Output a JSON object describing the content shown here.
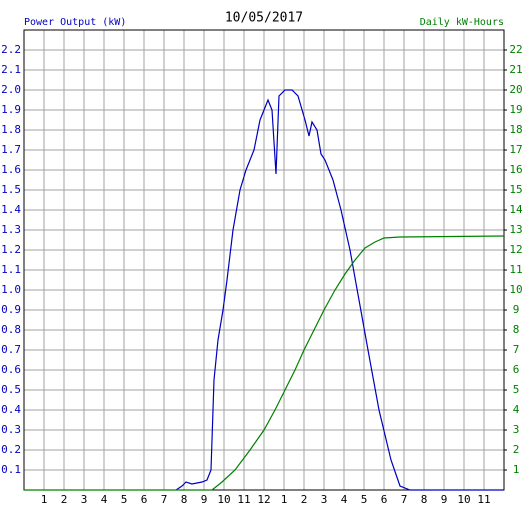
{
  "chart_data": {
    "type": "line",
    "title": "10/05/2017",
    "y_label": "Power Output (kW)",
    "y2_label": "Daily kW-Hours",
    "xlim": [
      0,
      24
    ],
    "xticks": [
      1,
      2,
      3,
      4,
      5,
      6,
      7,
      8,
      9,
      10,
      11,
      12,
      {
        "value": 13,
        "label": "1"
      },
      {
        "value": 14,
        "label": "2"
      },
      {
        "value": 15,
        "label": "3"
      },
      {
        "value": 16,
        "label": "4"
      },
      {
        "value": 17,
        "label": "5"
      },
      {
        "value": 18,
        "label": "6"
      },
      {
        "value": 19,
        "label": "7"
      },
      {
        "value": 20,
        "label": "8"
      },
      {
        "value": 21,
        "label": "9"
      },
      {
        "value": 22,
        "label": "10"
      },
      {
        "value": 23,
        "label": "11"
      }
    ],
    "ylim": [
      0,
      2.3
    ],
    "yticks": [
      0.1,
      0.2,
      0.3,
      0.4,
      0.5,
      0.6,
      0.7,
      0.8,
      0.9,
      {
        "value": 1,
        "label": "1.0"
      },
      1.1,
      1.2,
      1.3,
      1.4,
      1.5,
      1.6,
      1.7,
      1.8,
      1.9,
      {
        "value": 2,
        "label": "2.0"
      },
      2.1,
      2.2
    ],
    "y2lim": [
      0,
      23
    ],
    "y2ticks": [
      1,
      2,
      3,
      4,
      5,
      6,
      7,
      8,
      9,
      10,
      11,
      12,
      13,
      14,
      15,
      16,
      17,
      18,
      19,
      20,
      21,
      22
    ],
    "grid": true,
    "series": [
      {
        "name": "Power Output (kW)",
        "color": "#0000c0",
        "x": [
          7.6,
          7.9,
          8.1,
          8.4,
          8.9,
          9.15,
          9.35,
          9.5,
          9.7,
          9.95,
          10.15,
          10.45,
          10.8,
          11.1,
          11.5,
          11.8,
          12.2,
          12.4,
          12.6,
          12.75,
          13.05,
          13.4,
          13.7,
          14.05,
          14.25,
          14.4,
          14.65,
          14.85,
          15.05,
          15.45,
          15.85,
          16.3,
          16.75,
          17.2,
          17.75,
          18.35,
          18.8,
          19.3,
          24
        ],
        "values": [
          0,
          0.02,
          0.04,
          0.03,
          0.04,
          0.05,
          0.1,
          0.55,
          0.75,
          0.9,
          1.05,
          1.3,
          1.5,
          1.6,
          1.7,
          1.85,
          1.95,
          1.9,
          1.58,
          1.97,
          2.0,
          2.0,
          1.97,
          1.85,
          1.77,
          1.84,
          1.8,
          1.68,
          1.65,
          1.55,
          1.4,
          1.2,
          0.95,
          0.7,
          0.4,
          0.15,
          0.02,
          0,
          0
        ]
      },
      {
        "name": "Daily kW-Hours",
        "color": "#008000",
        "axis": "y2",
        "x": [
          0,
          9.4,
          9.9,
          10.55,
          11.3,
          12.0,
          12.55,
          13.05,
          13.55,
          14.0,
          14.5,
          15.0,
          15.55,
          16.05,
          16.55,
          17.05,
          17.55,
          18.0,
          18.8,
          24
        ],
        "values": [
          0,
          0,
          0.4,
          1,
          2,
          3,
          4,
          5,
          6,
          7,
          8,
          9,
          10,
          10.8,
          11.5,
          12.1,
          12.4,
          12.6,
          12.65,
          12.7
        ]
      }
    ]
  }
}
